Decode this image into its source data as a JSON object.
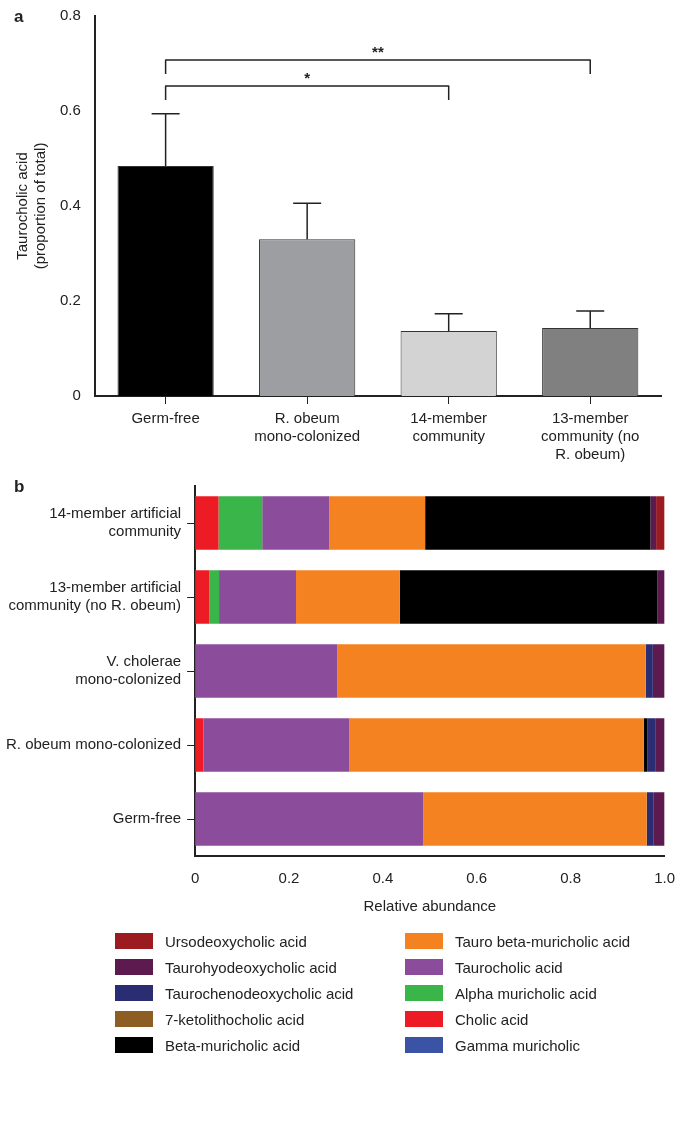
{
  "chart_data": [
    {
      "type": "bar",
      "title": "a",
      "ylabel": "Taurocholic acid (proportion of total)",
      "categories": [
        "Germ-free",
        "R. obeum mono-colonized",
        "14-member community",
        "13-member community (no R. obeum)"
      ],
      "values": [
        0.484,
        0.33,
        0.137,
        0.143
      ],
      "errors": [
        [
          0.484,
          0.594
        ],
        [
          0.33,
          0.406
        ],
        [
          0.137,
          0.173
        ],
        [
          0.143,
          0.179
        ]
      ],
      "colors": [
        "#000000",
        "#9d9ea2",
        "#d3d3d3",
        "#808080"
      ],
      "ylim": [
        0,
        0.8
      ],
      "yticks": [
        0,
        0.2,
        0.4,
        0.6,
        0.8
      ],
      "annotations": [
        "*",
        "**"
      ]
    },
    {
      "type": "bar",
      "title": "b",
      "orientation": "horizontal",
      "stacked": true,
      "xlabel": "Relative abundance",
      "legend": "bottom",
      "categories": [
        "14-member artificial community",
        "13-member artificial community (no R. obeum)",
        "V. cholerae mono-colonized",
        "R. obeum mono-colonized",
        "Germ-free"
      ],
      "xlim": [
        0,
        1
      ],
      "xticks": [
        0,
        0.2,
        0.4,
        0.6,
        0.8,
        {
          "value": 1,
          "label": "1.0"
        }
      ],
      "series": [
        {
          "name": "Gamma muricholic",
          "color": "#3a53a4",
          "values": [
            0,
            0,
            0,
            0,
            0
          ]
        },
        {
          "name": "Cholic acid",
          "color": "#ed1c24",
          "values": [
            0.05,
            0.03,
            0,
            0.018,
            0
          ]
        },
        {
          "name": "Alpha muricholic acid",
          "color": "#39b54a",
          "values": [
            0.093,
            0.021,
            0,
            0,
            0
          ]
        },
        {
          "name": "Taurocholic acid",
          "color": "#8b4c9c",
          "values": [
            0.143,
            0.164,
            0.303,
            0.31,
            0.486
          ]
        },
        {
          "name": "Tauro beta-muricholic acid",
          "color": "#f58220",
          "values": [
            0.204,
            0.221,
            0.657,
            0.628,
            0.476
          ]
        },
        {
          "name": "Beta-muricholic acid",
          "color": "#000000",
          "values": [
            0.48,
            0.549,
            0,
            0.007,
            0
          ]
        },
        {
          "name": "7-ketolithocholic acid",
          "color": "#8c5e24",
          "values": [
            0,
            0,
            0,
            0,
            0
          ]
        },
        {
          "name": "Taurochenodeoxycholic acid",
          "color": "#2b2d72",
          "values": [
            0,
            0,
            0.015,
            0.017,
            0.015
          ]
        },
        {
          "name": "Taurohyodeoxycholic acid",
          "color": "#5c1a4f",
          "values": [
            0.012,
            0.015,
            0.025,
            0.02,
            0.023
          ]
        },
        {
          "name": "Ursodeoxycholic acid",
          "color": "#9b1b20",
          "values": [
            0.018,
            0,
            0,
            0,
            0
          ]
        }
      ]
    }
  ]
}
